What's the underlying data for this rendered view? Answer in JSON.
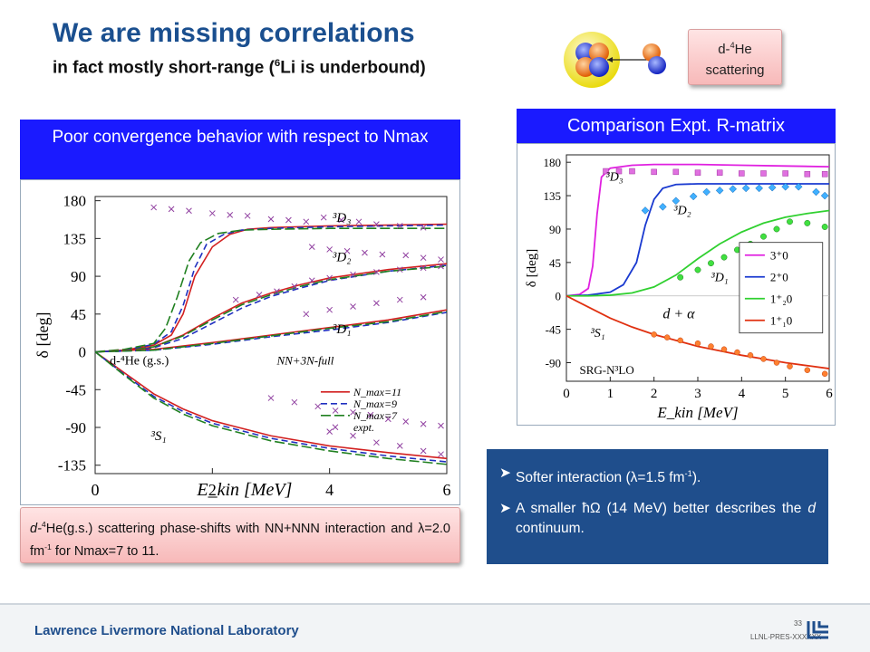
{
  "header": {
    "title": "We are missing correlations",
    "subtitle_pre": "in fact mostly short-range (",
    "subtitle_sup": "6",
    "subtitle_post": "Li is underbound)"
  },
  "scatter_button": {
    "pre": "d-",
    "sup": "4",
    "post": "He",
    "line2": "scattering"
  },
  "left_header": "Poor convergence behavior with respect to Nmax",
  "right_header": "Comparison Expt. R-matrix",
  "left_caption": {
    "pre": "d-",
    "sup": "4",
    "mid": "He(g.s.) scattering phase-shifts with NN+NNN interaction and ",
    "lambda": "λ=2.0 fm",
    "sup2": "-1",
    "post": " for Nmax=7 to 11."
  },
  "bullets": [
    {
      "pre": "Softer interaction (",
      "lam": "λ=1.5 fm",
      "sup": "-1",
      "post": ")."
    },
    {
      "pre": "A smaller ",
      "hw": "ħΩ",
      "mid": " (14 MeV) better describes the ",
      "ital": "d",
      "post": " continuum."
    }
  ],
  "footer": {
    "lab": "Lawrence Livermore National Laboratory",
    "page": "33",
    "code": "LLNL-PRES-XXXXXX"
  },
  "colors": {
    "title": "#1a4f8f",
    "header_box": "#1a1aff",
    "blue_note": "#1f4e8c"
  },
  "chart_data": [
    {
      "type": "line",
      "xlabel": "E_kin [MeV]",
      "ylabel": "δ [deg]",
      "xlim": [
        0,
        6
      ],
      "ylim": [
        -145,
        185
      ],
      "xticks": [
        "0",
        "2",
        "4",
        "6"
      ],
      "yticks": [
        "180",
        "135",
        "90",
        "45",
        "0",
        "-45",
        "-90",
        "-135"
      ],
      "label_system": "d-⁴He (g.s.)",
      "label_interaction": "NN+3N-full",
      "channel_labels": [
        "³D₃",
        "³D₂",
        "³D₁",
        "³S₁"
      ],
      "legend": [
        "N_max=11",
        "N_max=9",
        "N_max=7",
        "expt."
      ],
      "series": [
        {
          "name": "N_max=11",
          "channel": "3D3",
          "x": [
            0,
            0.5,
            1,
            1.3,
            1.5,
            1.7,
            2,
            2.3,
            2.6,
            3,
            4,
            5,
            6
          ],
          "y": [
            0,
            2,
            8,
            20,
            45,
            90,
            125,
            140,
            146,
            148,
            150,
            151,
            152
          ]
        },
        {
          "name": "N_max=9",
          "channel": "3D3",
          "x": [
            0,
            0.5,
            1,
            1.3,
            1.5,
            1.7,
            1.9,
            2.2,
            2.5,
            3,
            4,
            5,
            6
          ],
          "y": [
            0,
            2,
            9,
            24,
            55,
            100,
            128,
            140,
            145,
            147,
            149,
            150,
            151
          ]
        },
        {
          "name": "N_max=7",
          "channel": "3D3",
          "x": [
            0,
            0.5,
            1,
            1.2,
            1.4,
            1.6,
            1.8,
            2.1,
            2.5,
            3,
            4,
            5,
            6
          ],
          "y": [
            0,
            3,
            10,
            28,
            65,
            108,
            130,
            141,
            145,
            146,
            147,
            147,
            147
          ]
        },
        {
          "name": "N_max=11",
          "channel": "3D2",
          "x": [
            0,
            0.5,
            1,
            1.5,
            2,
            2.5,
            3,
            3.5,
            4,
            5,
            6
          ],
          "y": [
            0,
            1,
            6,
            20,
            40,
            58,
            70,
            80,
            88,
            98,
            105
          ]
        },
        {
          "name": "N_max=9",
          "channel": "3D2",
          "x": [
            0,
            0.5,
            1,
            1.5,
            2,
            2.5,
            3,
            3.5,
            4,
            5,
            6
          ],
          "y": [
            0,
            1,
            5,
            16,
            34,
            52,
            66,
            76,
            85,
            96,
            103
          ]
        },
        {
          "name": "N_max=7",
          "channel": "3D2",
          "x": [
            0,
            0.5,
            1,
            1.5,
            2,
            2.5,
            3,
            3.5,
            4,
            5,
            6
          ],
          "y": [
            0,
            1,
            6,
            19,
            38,
            56,
            68,
            78,
            86,
            96,
            102
          ]
        },
        {
          "name": "N_max=11",
          "channel": "3D1",
          "x": [
            0,
            1,
            2,
            3,
            4,
            5,
            6
          ],
          "y": [
            0,
            3,
            11,
            20,
            29,
            38,
            50
          ]
        },
        {
          "name": "N_max=9",
          "channel": "3D1",
          "x": [
            0,
            1,
            2,
            3,
            4,
            5,
            6
          ],
          "y": [
            0,
            2,
            9,
            18,
            26,
            35,
            47
          ]
        },
        {
          "name": "N_max=7",
          "channel": "3D1",
          "x": [
            0,
            1,
            2,
            3,
            4,
            5,
            6
          ],
          "y": [
            0,
            2,
            10,
            19,
            28,
            36,
            48
          ]
        },
        {
          "name": "N_max=11",
          "channel": "3S1",
          "x": [
            0,
            0.5,
            1,
            1.5,
            2,
            3,
            4,
            5,
            6
          ],
          "y": [
            0,
            -25,
            -50,
            -68,
            -82,
            -100,
            -112,
            -120,
            -127
          ]
        },
        {
          "name": "N_max=9",
          "channel": "3S1",
          "x": [
            0,
            0.5,
            1,
            1.5,
            2,
            3,
            4,
            5,
            6
          ],
          "y": [
            0,
            -27,
            -53,
            -71,
            -85,
            -103,
            -115,
            -124,
            -131
          ]
        },
        {
          "name": "N_max=7",
          "channel": "3S1",
          "x": [
            0,
            0.5,
            1,
            1.5,
            2,
            3,
            4,
            5,
            6
          ],
          "y": [
            0,
            -28,
            -55,
            -74,
            -88,
            -106,
            -118,
            -127,
            -134
          ]
        }
      ],
      "expt": [
        [
          1.0,
          172
        ],
        [
          1.3,
          170
        ],
        [
          1.6,
          168
        ],
        [
          2.0,
          165
        ],
        [
          2.3,
          163
        ],
        [
          2.6,
          162
        ],
        [
          3.0,
          158
        ],
        [
          3.3,
          157
        ],
        [
          3.6,
          155
        ],
        [
          3.9,
          160
        ],
        [
          4.2,
          157
        ],
        [
          4.5,
          155
        ],
        [
          4.8,
          152
        ],
        [
          5.2,
          150
        ],
        [
          5.6,
          148
        ],
        [
          3.7,
          125
        ],
        [
          4.0,
          122
        ],
        [
          4.3,
          120
        ],
        [
          4.6,
          118
        ],
        [
          4.9,
          116
        ],
        [
          5.3,
          115
        ],
        [
          5.6,
          112
        ],
        [
          5.9,
          110
        ],
        [
          2.4,
          62
        ],
        [
          2.8,
          68
        ],
        [
          3.1,
          72
        ],
        [
          3.4,
          78
        ],
        [
          3.7,
          85
        ],
        [
          4.0,
          88
        ],
        [
          4.4,
          92
        ],
        [
          4.8,
          95
        ],
        [
          5.2,
          98
        ],
        [
          5.6,
          100
        ],
        [
          5.9,
          102
        ],
        [
          3.6,
          45
        ],
        [
          4.0,
          50
        ],
        [
          4.4,
          54
        ],
        [
          4.8,
          58
        ],
        [
          5.2,
          62
        ],
        [
          5.6,
          65
        ],
        [
          3.0,
          -55
        ],
        [
          3.4,
          -60
        ],
        [
          3.8,
          -65
        ],
        [
          4.1,
          -70
        ],
        [
          4.4,
          -72
        ],
        [
          4.7,
          -75
        ],
        [
          5.0,
          -80
        ],
        [
          5.3,
          -83
        ],
        [
          5.6,
          -86
        ],
        [
          5.9,
          -88
        ],
        [
          4.0,
          -95
        ],
        [
          4.4,
          -100
        ],
        [
          4.8,
          -108
        ],
        [
          5.2,
          -112
        ],
        [
          5.6,
          -118
        ],
        [
          5.9,
          -122
        ]
      ]
    },
    {
      "type": "line",
      "xlabel": "E_kin [MeV]",
      "ylabel": "δ [deg]",
      "xlim": [
        0,
        6
      ],
      "ylim": [
        -115,
        190
      ],
      "xticks": [
        "0",
        "1",
        "2",
        "3",
        "4",
        "5",
        "6"
      ],
      "yticks": [
        "180",
        "135",
        "90",
        "45",
        "0",
        "-45",
        "-90"
      ],
      "label_system": "d + α",
      "label_interaction": "SRG-N³LO",
      "channel_labels": [
        "³D₃",
        "³D₂",
        "³D₁",
        "³S₁"
      ],
      "legend": [
        "3⁺0",
        "2⁺0",
        "1⁺₂0",
        "1⁺₁0"
      ],
      "series": [
        {
          "name": "3+0",
          "x": [
            0,
            0.3,
            0.5,
            0.6,
            0.7,
            0.8,
            1,
            1.5,
            2,
            3,
            4,
            5,
            6
          ],
          "y": [
            0,
            2,
            10,
            40,
            110,
            160,
            172,
            176,
            177,
            177,
            176,
            175,
            174
          ]
        },
        {
          "name": "2+0",
          "x": [
            0,
            0.5,
            1,
            1.3,
            1.6,
            1.8,
            2,
            2.2,
            2.5,
            3,
            4,
            5,
            6
          ],
          "y": [
            0,
            1,
            5,
            15,
            45,
            95,
            130,
            145,
            150,
            151,
            151,
            151,
            151
          ]
        },
        {
          "name": "1+20",
          "x": [
            0,
            0.5,
            1,
            1.5,
            2,
            2.5,
            3,
            3.5,
            4,
            4.5,
            5,
            5.5,
            6
          ],
          "y": [
            0,
            0,
            1,
            4,
            12,
            28,
            50,
            70,
            86,
            98,
            106,
            111,
            115
          ]
        },
        {
          "name": "1+10",
          "x": [
            0,
            0.5,
            1,
            1.5,
            2,
            2.5,
            3,
            3.5,
            4,
            4.5,
            5,
            5.5,
            6
          ],
          "y": [
            0,
            -15,
            -30,
            -42,
            -52,
            -60,
            -68,
            -74,
            -80,
            -85,
            -90,
            -94,
            -98
          ]
        }
      ],
      "expt": [
        {
          "series": "3+0",
          "x": [
            0.9,
            1.2,
            1.5,
            2.0,
            2.5,
            3.0,
            3.5,
            4.0,
            4.5,
            5.0,
            5.5,
            5.9
          ],
          "y": [
            168,
            168,
            168,
            167,
            167,
            166,
            166,
            165,
            165,
            165,
            164,
            164
          ]
        },
        {
          "series": "2+0",
          "x": [
            1.8,
            2.2,
            2.5,
            2.9,
            3.2,
            3.5,
            3.8,
            4.1,
            4.4,
            4.7,
            5.0,
            5.3,
            5.7,
            5.9
          ],
          "y": [
            115,
            120,
            128,
            134,
            140,
            142,
            144,
            145,
            145,
            146,
            147,
            147,
            140,
            135
          ]
        },
        {
          "series": "1+20",
          "x": [
            2.6,
            3.0,
            3.3,
            3.6,
            3.9,
            4.2,
            4.5,
            4.8,
            5.1,
            5.5,
            5.9
          ],
          "y": [
            25,
            35,
            44,
            52,
            62,
            70,
            80,
            90,
            100,
            98,
            93
          ]
        },
        {
          "series": "1+10",
          "x": [
            2.0,
            2.3,
            2.6,
            3.0,
            3.3,
            3.6,
            3.9,
            4.2,
            4.5,
            4.8,
            5.1,
            5.5,
            5.9
          ],
          "y": [
            -52,
            -56,
            -60,
            -64,
            -68,
            -72,
            -76,
            -80,
            -85,
            -90,
            -95,
            -100,
            -105
          ]
        }
      ]
    }
  ]
}
